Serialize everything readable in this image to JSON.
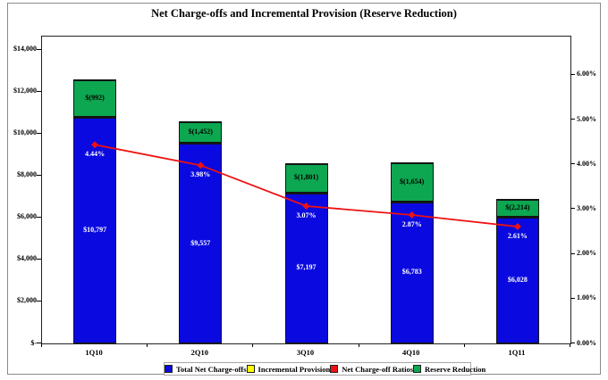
{
  "title": "Net Charge-offs and Incremental Provision (Reserve Reduction)",
  "chart_data": {
    "type": "combo-stacked-bar-line",
    "categories": [
      "1Q10",
      "2Q10",
      "3Q10",
      "4Q10",
      "1Q11"
    ],
    "series": [
      {
        "name": "Total Net Charge-offs",
        "type": "bar",
        "axis": "left",
        "color": "#0a0ae0",
        "values": [
          10797,
          9557,
          7197,
          6783,
          6028
        ],
        "data_labels": [
          "$10,797",
          "$9,557",
          "$7,197",
          "$6,783",
          "$6,028"
        ],
        "label_color": "#ffffff"
      },
      {
        "name": "Reserve Reduction",
        "type": "bar",
        "axis": "left",
        "color": "#0ca750",
        "values": [
          992,
          1452,
          1801,
          1654,
          2214
        ],
        "data_labels": [
          "$(992)",
          "$(1,452)",
          "$(1,801)",
          "$(1,654)",
          "$(2,214)"
        ],
        "label_color": "#000000",
        "visual_stack_tops": [
          12590,
          10610,
          8600,
          8640,
          6890
        ]
      },
      {
        "name": "Net Charge-off Ratios",
        "type": "line",
        "axis": "right",
        "color": "#ee1111",
        "values": [
          4.44,
          3.98,
          3.07,
          2.87,
          2.61
        ],
        "data_labels": [
          "4.44%",
          "3.98%",
          "3.07%",
          "2.87%",
          "2.61%"
        ],
        "label_color": "#ffffff"
      }
    ],
    "legend": [
      {
        "label": "Total Net Charge-offs",
        "color": "#0a0ae0"
      },
      {
        "label": "Incremental Provision",
        "color": "#ffff00"
      },
      {
        "label": "Net Charge-off Ratios",
        "color": "#ee1111"
      },
      {
        "label": "Reserve Reduction",
        "color": "#0ca750"
      }
    ],
    "left_axis": {
      "tick_labels": [
        "$14,000",
        "$12,000",
        "$10,000",
        "$8,000",
        "$6,000",
        "$4,000",
        "$2,000",
        "$-"
      ],
      "tick_values": [
        14000,
        12000,
        10000,
        8000,
        6000,
        4000,
        2000,
        0
      ],
      "visual_max": 14630
    },
    "right_axis": {
      "tick_labels": [
        "6.00%",
        "5.00%",
        "4.00%",
        "3.00%",
        "2.00%",
        "1.00%",
        "0.00%"
      ],
      "tick_values": [
        6,
        5,
        4,
        3,
        2,
        1,
        0
      ],
      "visual_max": 6.857
    },
    "grid": "off",
    "legend_position": "bottom"
  }
}
